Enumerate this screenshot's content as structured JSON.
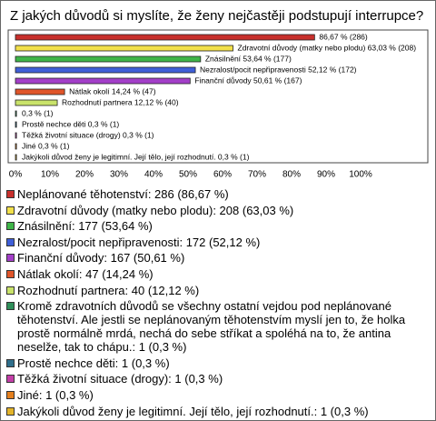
{
  "chart_data": {
    "type": "bar",
    "orientation": "horizontal",
    "title": "Z jakých důvodů si myslíte, že ženy nejčastěji podstupují interrupce?",
    "categories": [
      "Neplánované těhotenství: 286 (86,67 %)",
      "Zdravotní důvody (matky nebo plodu): 208 (63,03 %)",
      "Znásilnění: 177 (53,64 %)",
      "Nezralost/pocit nepřipravenosti: 172 (52,12 %)",
      "Finanční důvody: 167 (50,61 %)",
      "Nátlak okolí: 47 (14,24 %)",
      "Rozhodnutí partnera: 40 (12,12 %)",
      "Kromě zdravotních důvodů se všechny ostatní vejdou pod neplánované těhotenství. Ale jestli se neplánovaným těhotenstvím myslí jen to, že holka prostě normálně mrdá, nechá do sebe stříkat a spoléhá na to, že antina neselže, tak to chápu.: 1 (0,3 %)",
      "Prostě nechce děti: 1 (0,3 %)",
      "Těžká životní situace (drogy): 1 (0,3 %)",
      "Jiné: 1 (0,3 %)",
      "Jakýkoli důvod ženy je legitimní. Její tělo, její rozhodnutí.: 1 (0,3 %)"
    ],
    "values": [
      86.67,
      63.03,
      53.64,
      52.12,
      50.61,
      14.24,
      12.12,
      0.3,
      0.3,
      0.3,
      0.3,
      0.3
    ],
    "value_labels": [
      "86,67 % (286)",
      "Zdravotní důvody (matky nebo plodu) 63,03 % (208)",
      "Znásilnění 53,64 % (177)",
      "Nezralost/pocit nepřipravenosti 52,12 % (172)",
      "Finanční důvody 50,61 % (167)",
      "Nátlak okolí 14,24 % (47)",
      "Rozhodnutí partnera 12,12 % (40)",
      "0,3 % (1)",
      "Prostě nechce děti 0,3 % (1)",
      "Těžká životní situace (drogy) 0,3 % (1)",
      "Jiné 0,3 % (1)",
      "Jakýkoli důvod ženy je legitimní. Její tělo, její rozhodnutí. 0,3 % (1)"
    ],
    "colors": [
      "#c8302c",
      "#f2e04a",
      "#3fb548",
      "#3f5fd8",
      "#a33fc8",
      "#e0552a",
      "#c9e36a",
      "#2f8f5a",
      "#2f6f8c",
      "#c43fa8",
      "#e5801f",
      "#e3b42a"
    ],
    "xlim": [
      0,
      100
    ],
    "xticks": [
      {
        "value": 0,
        "label": "0%"
      },
      {
        "value": 10,
        "label": "10%"
      },
      {
        "value": 20,
        "label": "20%"
      },
      {
        "value": 30,
        "label": "30%"
      },
      {
        "value": 40,
        "label": "40%"
      },
      {
        "value": 50,
        "label": "50%"
      },
      {
        "value": 60,
        "label": "60%"
      },
      {
        "value": 70,
        "label": "70%"
      },
      {
        "value": 80,
        "label": "80%"
      },
      {
        "value": 90,
        "label": "90%"
      },
      {
        "value": 100,
        "label": "100%"
      }
    ],
    "grid": false
  }
}
